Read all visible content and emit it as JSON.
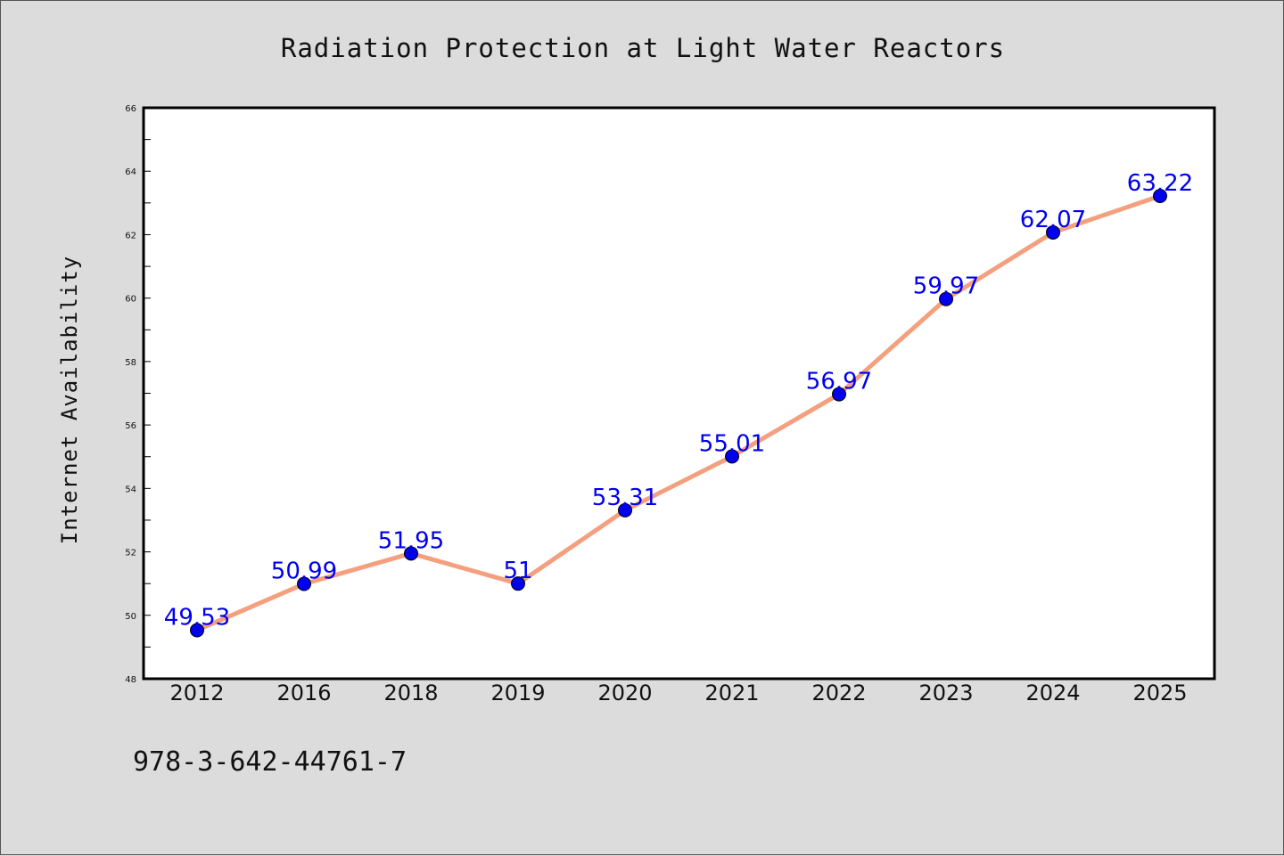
{
  "chart_data": {
    "type": "line",
    "title": "Radiation Protection at Light Water Reactors",
    "xlabel": "",
    "ylabel": "Internet Availability",
    "categories": [
      "2012",
      "2016",
      "2018",
      "2019",
      "2020",
      "2021",
      "2022",
      "2023",
      "2024",
      "2025"
    ],
    "series": [
      {
        "values": [
          49.53,
          50.99,
          51.95,
          51,
          53.31,
          55.01,
          56.97,
          59.97,
          62.07,
          63.22
        ],
        "data_labels": [
          "49.53",
          "50.99",
          "51.95",
          "51",
          "53.31",
          "55.01",
          "56.97",
          "59.97",
          "62.07",
          "63.22"
        ]
      }
    ],
    "ylim": [
      48,
      66
    ],
    "yticks": [
      48,
      50,
      52,
      54,
      56,
      58,
      60,
      62,
      64,
      66
    ],
    "ytick_labels": [
      "48",
      "50",
      "52",
      "54",
      "56",
      "58",
      "60",
      "62",
      "64",
      "66"
    ],
    "grid": false,
    "legend": "none",
    "colors": {
      "line": "#f4a07f",
      "marker": "#0000ee",
      "label": "#0000ee",
      "background": "#dcdcdc",
      "plot_background": "#ffffff"
    }
  },
  "footnote": "978-3-642-44761-7"
}
